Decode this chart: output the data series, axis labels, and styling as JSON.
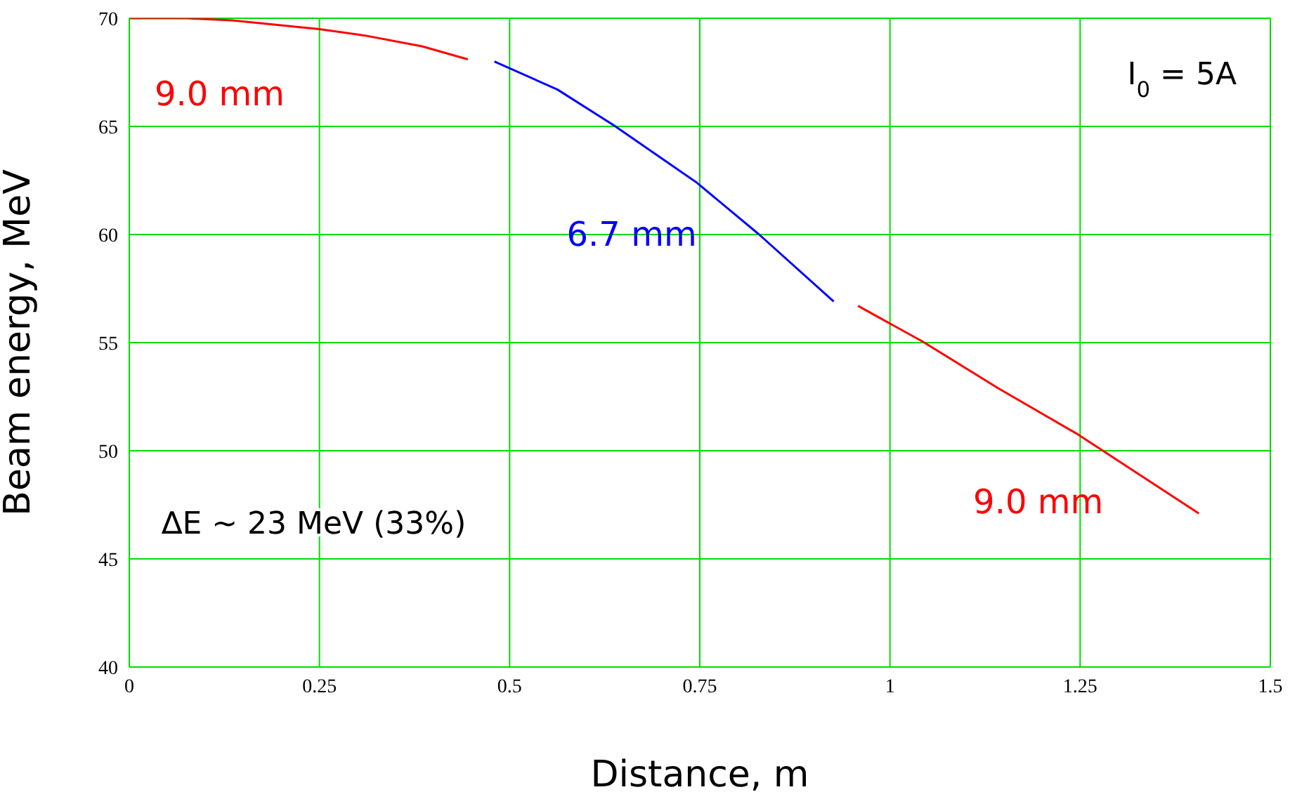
{
  "chart_data": {
    "type": "line",
    "xlabel": "Distance,  m",
    "ylabel": "Beam energy, MeV",
    "xlim": [
      0,
      1.5
    ],
    "xticks": [
      0,
      0.25,
      0.5,
      0.75,
      1,
      1.25,
      1.5
    ],
    "ylim": [
      40,
      70
    ],
    "yticks": [
      40,
      45,
      50,
      55,
      60,
      65,
      70
    ],
    "grid": true,
    "legend": false,
    "marker": "none",
    "line_style": "solid",
    "series": [
      {
        "name": "9.0 mm",
        "color": "#ff0000",
        "x": [
          0,
          0.075,
          0.135,
          0.25,
          0.31,
          0.385,
          0.445
        ],
        "values": [
          70,
          70,
          69.9,
          69.5,
          69.2,
          68.7,
          68.1
        ]
      },
      {
        "name": "6.7 mm",
        "color": "#0000ff",
        "x": [
          0.48,
          0.563,
          0.637,
          0.746,
          0.828,
          0.926
        ],
        "values": [
          68,
          66.7,
          65.05,
          62.4,
          60,
          56.9
        ]
      },
      {
        "name": "9.0 mm",
        "color": "#ff0000",
        "x": [
          0.958,
          1.043,
          1.142,
          1.245,
          1.406
        ],
        "values": [
          56.7,
          55.05,
          52.9,
          50.8,
          47.1
        ]
      }
    ],
    "annotations": [
      "I$_{0}$ = 5A",
      "∆E ~ 23 MeV (33%)"
    ]
  }
}
